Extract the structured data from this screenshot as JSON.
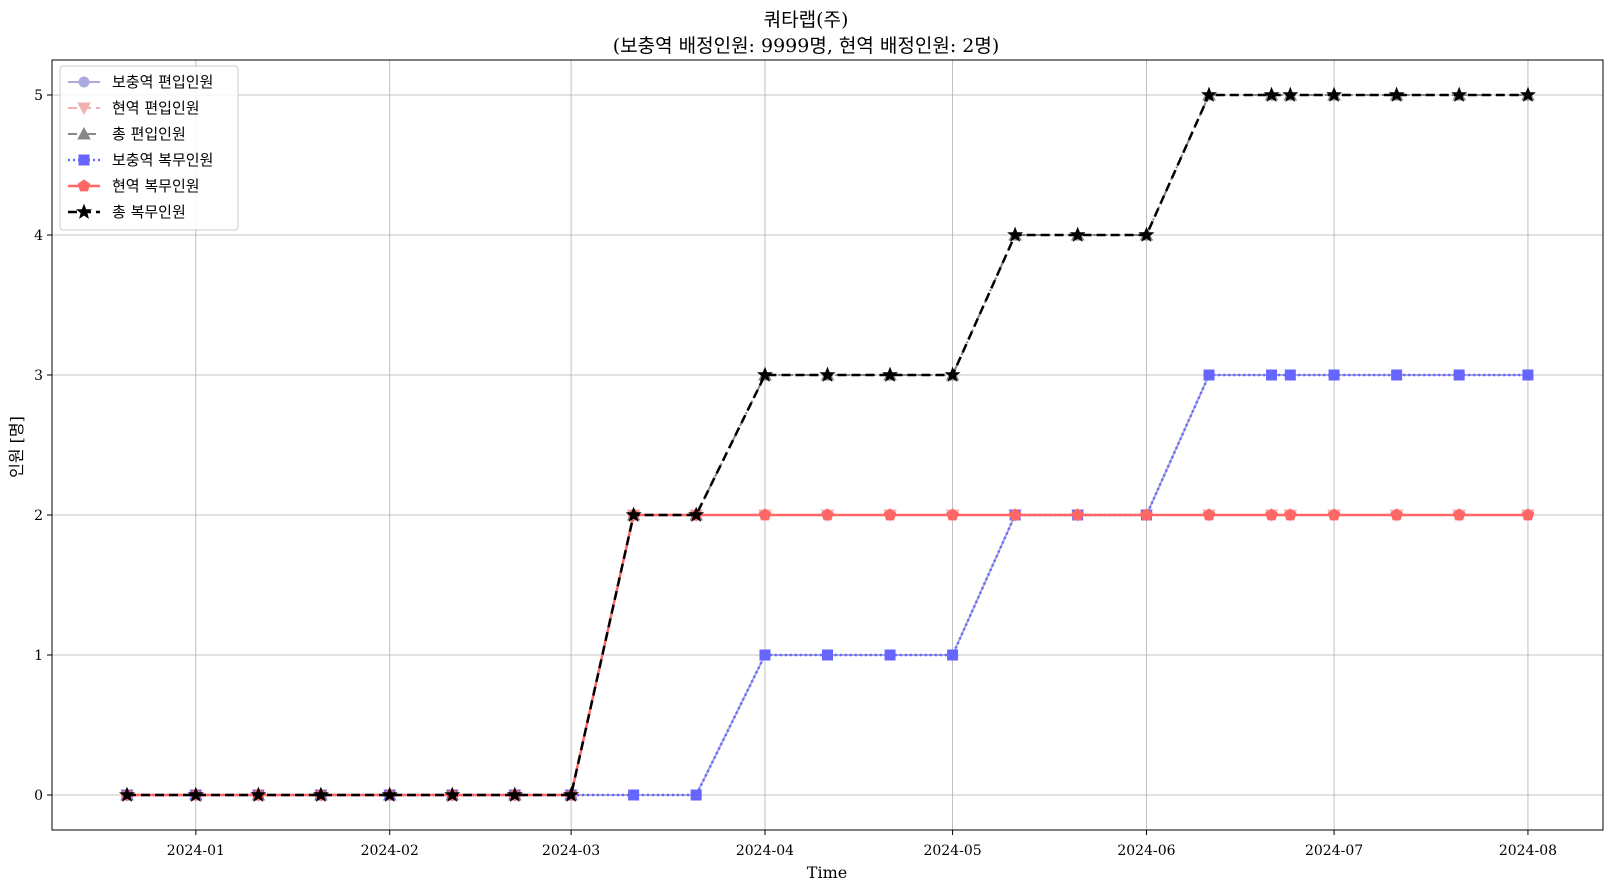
{
  "chart_data": {
    "type": "line",
    "title": "쿼타랩(주)",
    "subtitle": "(보충역 배정인원: 9999명, 현역 배정인원: 2명)",
    "xlabel": "Time",
    "ylabel": "인원 [명]",
    "grid": true,
    "legend_position": "top-left",
    "ylim": [
      -0.25,
      5.25
    ],
    "xlim": [
      "2023-12-09",
      "2024-08-13"
    ],
    "x_ticks": [
      "2024-01",
      "2024-02",
      "2024-03",
      "2024-04",
      "2024-05",
      "2024-06",
      "2024-07",
      "2024-08"
    ],
    "y_ticks": [
      0,
      1,
      2,
      3,
      4,
      5
    ],
    "x": [
      "2023-12-21",
      "2024-01-01",
      "2024-01-11",
      "2024-01-21",
      "2024-02-01",
      "2024-02-11",
      "2024-02-21",
      "2024-03-01",
      "2024-03-11",
      "2024-03-21",
      "2024-04-01",
      "2024-04-11",
      "2024-04-21",
      "2024-05-01",
      "2024-05-11",
      "2024-05-21",
      "2024-06-01",
      "2024-06-11",
      "2024-06-21",
      "2024-06-24",
      "2024-07-01",
      "2024-07-11",
      "2024-07-21",
      "2024-08-01"
    ],
    "series": [
      {
        "name": "보충역 편입인원",
        "color": "#aaaadd",
        "dash": "solid",
        "marker": "circle",
        "width": 2,
        "values": [
          0,
          0,
          0,
          0,
          0,
          0,
          0,
          0,
          0,
          0,
          1,
          1,
          1,
          1,
          2,
          2,
          2,
          3,
          3,
          3,
          3,
          3,
          3,
          3
        ]
      },
      {
        "name": "현역 편입인원",
        "color": "#f0b0b0",
        "dash": "dashed",
        "marker": "triangle-down",
        "width": 2,
        "values": [
          0,
          0,
          0,
          0,
          0,
          0,
          0,
          0,
          2,
          2,
          2,
          2,
          2,
          2,
          2,
          2,
          2,
          2,
          2,
          2,
          2,
          2,
          2,
          2
        ]
      },
      {
        "name": "총 편입인원",
        "color": "#888888",
        "dash": "dashdot",
        "marker": "triangle-up",
        "width": 2,
        "values": [
          0,
          0,
          0,
          0,
          0,
          0,
          0,
          0,
          2,
          2,
          3,
          3,
          3,
          3,
          4,
          4,
          4,
          5,
          5,
          5,
          5,
          5,
          5,
          5
        ]
      },
      {
        "name": "보충역 복무인원",
        "color": "#6666ff",
        "dash": "dotted",
        "marker": "square",
        "width": 2.5,
        "values": [
          0,
          0,
          0,
          0,
          0,
          0,
          0,
          0,
          0,
          0,
          1,
          1,
          1,
          1,
          2,
          2,
          2,
          3,
          3,
          3,
          3,
          3,
          3,
          3
        ]
      },
      {
        "name": "현역 복무인원",
        "color": "#ff6666",
        "dash": "solid",
        "marker": "pentagon",
        "width": 2.5,
        "values": [
          0,
          0,
          0,
          0,
          0,
          0,
          0,
          0,
          2,
          2,
          2,
          2,
          2,
          2,
          2,
          2,
          2,
          2,
          2,
          2,
          2,
          2,
          2,
          2
        ]
      },
      {
        "name": "총 복무인원",
        "color": "#000000",
        "dash": "dashed",
        "marker": "star",
        "width": 2.5,
        "values": [
          0,
          0,
          0,
          0,
          0,
          0,
          0,
          0,
          2,
          2,
          3,
          3,
          3,
          3,
          4,
          4,
          4,
          5,
          5,
          5,
          5,
          5,
          5,
          5
        ]
      }
    ]
  }
}
